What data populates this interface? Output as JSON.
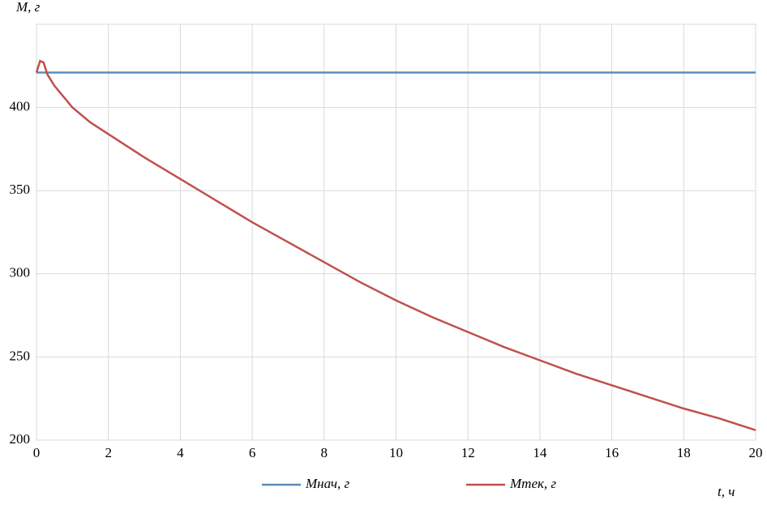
{
  "chart_data": {
    "type": "line",
    "y_label": "M, г",
    "x_label": "t, ч",
    "x": [
      0,
      0.1,
      0.2,
      0.3,
      0.5,
      1,
      1.5,
      2,
      3,
      4,
      5,
      6,
      7,
      8,
      9,
      10,
      11,
      12,
      13,
      14,
      15,
      16,
      17,
      18,
      19,
      20
    ],
    "series": [
      {
        "name": "Mнач, г",
        "color": "#5b8db8",
        "values": [
          421,
          421,
          421,
          421,
          421,
          421,
          421,
          421,
          421,
          421,
          421,
          421,
          421,
          421,
          421,
          421,
          421,
          421,
          421,
          421,
          421,
          421,
          421,
          421,
          421,
          421
        ]
      },
      {
        "name": "Mтек, г",
        "color": "#c0504d",
        "values": [
          421,
          428,
          427,
          420,
          413,
          400,
          391,
          384,
          370,
          357,
          344,
          331,
          319,
          307,
          295,
          284,
          274,
          265,
          256,
          248,
          240,
          233,
          226,
          219,
          213,
          206
        ]
      }
    ],
    "xlim": [
      0,
      20
    ],
    "xticks": [
      0,
      2,
      4,
      6,
      8,
      10,
      12,
      14,
      16,
      18,
      20
    ],
    "ylim": [
      200,
      450
    ],
    "yticks": [
      200,
      250,
      300,
      350,
      400
    ],
    "grid": true,
    "legend": "bottom"
  }
}
